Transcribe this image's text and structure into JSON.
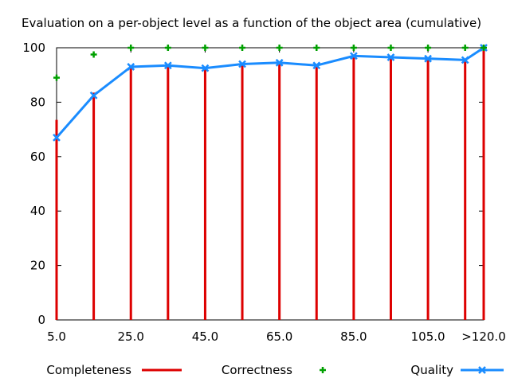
{
  "chart_data": {
    "type": "bar",
    "title": "Evaluation on a per-object level as a function of the object area (cumulative)",
    "xlabel": "",
    "ylabel": "",
    "x_tick_labels": [
      "5.0",
      "25.0",
      "45.0",
      "65.0",
      "85.0",
      "105.0",
      ">120.0"
    ],
    "y_tick_labels": [
      "0",
      "20",
      "40",
      "60",
      "80",
      "100"
    ],
    "ylim": [
      0,
      100
    ],
    "x": [
      5,
      15,
      25,
      35,
      45,
      55,
      65,
      75,
      85,
      95,
      105,
      115,
      120
    ],
    "xlim": [
      5,
      120
    ],
    "grid": false,
    "legend_position": "bottom",
    "series": [
      {
        "name": "Completeness",
        "style": "impulses",
        "color": "#dd0000",
        "values": [
          73.5,
          83.5,
          93.0,
          93.5,
          92.5,
          94.0,
          94.5,
          93.5,
          97.0,
          96.5,
          96.0,
          95.5,
          100.0
        ]
      },
      {
        "name": "Correctness",
        "style": "points",
        "color": "#00a000",
        "values": [
          89.0,
          97.5,
          100.0,
          100.0,
          100.0,
          100.0,
          100.0,
          100.0,
          100.0,
          100.0,
          100.0,
          100.0,
          100.0
        ]
      },
      {
        "name": "Quality",
        "style": "linespoints",
        "color": "#1a8cff",
        "values": [
          67.0,
          82.5,
          93.0,
          93.5,
          92.5,
          94.0,
          94.5,
          93.5,
          97.0,
          96.5,
          96.0,
          95.5,
          100.0
        ]
      }
    ]
  }
}
